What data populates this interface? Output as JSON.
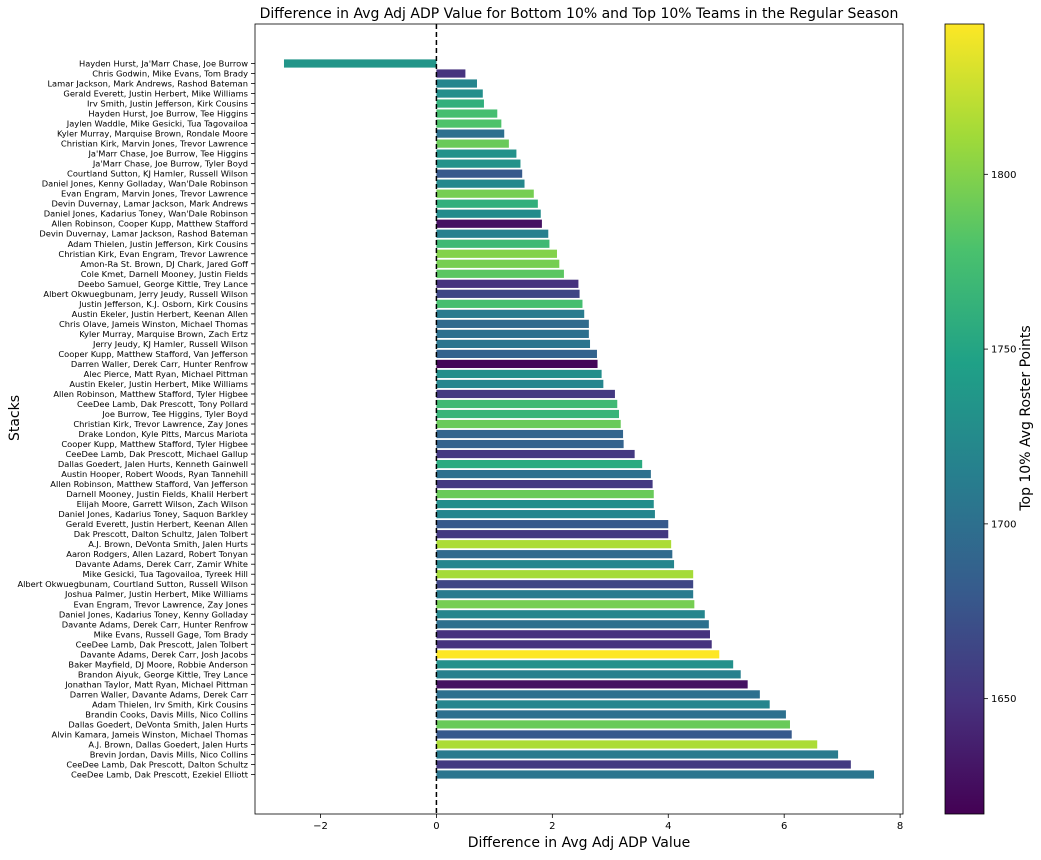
{
  "chart_data": {
    "type": "bar",
    "orientation": "horizontal",
    "title": "Difference in Avg Adj ADP Value for Bottom 10% and Top 10% Teams in the Regular Season",
    "xlabel": "Difference in Avg Adj ADP Value",
    "ylabel": "Stacks",
    "xlim": [
      -3.13,
      8.05
    ],
    "xticks": [
      -2,
      0,
      2,
      4,
      6,
      8
    ],
    "reference_line": {
      "x": 0,
      "style": "dashed",
      "color": "#000000"
    },
    "colorbar": {
      "label": "Top 10% Avg Roster Points",
      "min": 1617,
      "max": 1843,
      "ticks": [
        1650,
        1700,
        1750,
        1800
      ],
      "colormap": "viridis"
    },
    "bars": [
      {
        "label": "Hayden Hurst, Ja'Marr Chase, Joe Burrow",
        "value": -2.63,
        "color_value": 1735
      },
      {
        "label": "Chris Godwin, Mike Evans, Tom Brady",
        "value": 0.5,
        "color_value": 1650
      },
      {
        "label": "Lamar Jackson, Mark Andrews, Rashod Bateman",
        "value": 0.7,
        "color_value": 1720
      },
      {
        "label": "Gerald Everett, Justin Herbert, Mike Williams",
        "value": 0.8,
        "color_value": 1728
      },
      {
        "label": "Irv Smith, Justin Jefferson, Kirk Cousins",
        "value": 0.82,
        "color_value": 1760
      },
      {
        "label": "Hayden Hurst, Joe Burrow, Tee Higgins",
        "value": 1.05,
        "color_value": 1775
      },
      {
        "label": "Jaylen Waddle, Mike Gesicki, Tua Tagovailoa",
        "value": 1.12,
        "color_value": 1780
      },
      {
        "label": "Kyler Murray, Marquise Brown, Rondale Moore",
        "value": 1.17,
        "color_value": 1700
      },
      {
        "label": "Christian Kirk, Marvin Jones, Trevor Lawrence",
        "value": 1.25,
        "color_value": 1790
      },
      {
        "label": "Ja'Marr Chase, Joe Burrow, Tee Higgins",
        "value": 1.38,
        "color_value": 1732
      },
      {
        "label": "Ja'Marr Chase, Joe Burrow, Tyler Boyd",
        "value": 1.45,
        "color_value": 1732
      },
      {
        "label": "Courtland Sutton, KJ Hamler, Russell Wilson",
        "value": 1.48,
        "color_value": 1680
      },
      {
        "label": "Daniel Jones, Kenny Golladay, Wan'Dale Robinson",
        "value": 1.52,
        "color_value": 1722
      },
      {
        "label": "Evan Engram, Marvin Jones, Trevor Lawrence",
        "value": 1.68,
        "color_value": 1795
      },
      {
        "label": "Devin Duvernay, Lamar Jackson, Mark Andrews",
        "value": 1.75,
        "color_value": 1760
      },
      {
        "label": "Daniel Jones, Kadarius Toney, Wan'Dale Robinson",
        "value": 1.8,
        "color_value": 1725
      },
      {
        "label": "Allen Robinson, Cooper Kupp, Matthew Stafford",
        "value": 1.82,
        "color_value": 1628
      },
      {
        "label": "Devin Duvernay, Lamar Jackson, Rashod Bateman",
        "value": 1.93,
        "color_value": 1715
      },
      {
        "label": "Adam Thielen, Justin Jefferson, Kirk Cousins",
        "value": 1.95,
        "color_value": 1770
      },
      {
        "label": "Christian Kirk, Evan Engram, Trevor Lawrence",
        "value": 2.08,
        "color_value": 1800
      },
      {
        "label": "Amon-Ra St. Brown, DJ Chark, Jared Goff",
        "value": 2.12,
        "color_value": 1795
      },
      {
        "label": "Cole Kmet, Darnell Mooney, Justin Fields",
        "value": 2.2,
        "color_value": 1785
      },
      {
        "label": "Deebo Samuel, George Kittle, Trey Lance",
        "value": 2.45,
        "color_value": 1650
      },
      {
        "label": "Albert Okwuegbunam, Jerry Jeudy, Russell Wilson",
        "value": 2.47,
        "color_value": 1665
      },
      {
        "label": "Justin Jefferson, K.J. Osborn, Kirk Cousins",
        "value": 2.52,
        "color_value": 1775
      },
      {
        "label": "Austin Ekeler, Justin Herbert, Keenan Allen",
        "value": 2.55,
        "color_value": 1710
      },
      {
        "label": "Chris Olave, Jameis Winston, Michael Thomas",
        "value": 2.63,
        "color_value": 1695
      },
      {
        "label": "Kyler Murray, Marquise Brown, Zach Ertz",
        "value": 2.63,
        "color_value": 1700
      },
      {
        "label": "Jerry Jeudy, KJ Hamler, Russell Wilson",
        "value": 2.65,
        "color_value": 1705
      },
      {
        "label": "Cooper Kupp, Matthew Stafford, Van Jefferson",
        "value": 2.77,
        "color_value": 1688
      },
      {
        "label": "Darren Waller, Derek Carr, Hunter Renfrow",
        "value": 2.78,
        "color_value": 1620
      },
      {
        "label": "Alec Pierce, Matt Ryan, Michael Pittman",
        "value": 2.85,
        "color_value": 1728
      },
      {
        "label": "Austin Ekeler, Justin Herbert, Mike Williams",
        "value": 2.88,
        "color_value": 1720
      },
      {
        "label": "Allen Robinson, Matthew Stafford, Tyler Higbee",
        "value": 3.08,
        "color_value": 1655
      },
      {
        "label": "CeeDee Lamb, Dak Prescott, Tony Pollard",
        "value": 3.12,
        "color_value": 1770
      },
      {
        "label": "Joe Burrow, Tee Higgins, Tyler Boyd",
        "value": 3.15,
        "color_value": 1765
      },
      {
        "label": "Christian Kirk, Trevor Lawrence, Zay Jones",
        "value": 3.18,
        "color_value": 1790
      },
      {
        "label": "Drake London, Kyle Pitts, Marcus Mariota",
        "value": 3.22,
        "color_value": 1690
      },
      {
        "label": "Cooper Kupp, Matthew Stafford, Tyler Higbee",
        "value": 3.23,
        "color_value": 1688
      },
      {
        "label": "CeeDee Lamb, Dak Prescott, Michael Gallup",
        "value": 3.42,
        "color_value": 1655
      },
      {
        "label": "Dallas Goedert, Jalen Hurts, Kenneth Gainwell",
        "value": 3.55,
        "color_value": 1755
      },
      {
        "label": "Austin Hooper, Robert Woods, Ryan Tannehill",
        "value": 3.7,
        "color_value": 1700
      },
      {
        "label": "Allen Robinson, Matthew Stafford, Van Jefferson",
        "value": 3.73,
        "color_value": 1655
      },
      {
        "label": "Darnell Mooney, Justin Fields, Khalil Herbert",
        "value": 3.75,
        "color_value": 1790
      },
      {
        "label": "Elijah Moore, Garrett Wilson, Zach Wilson",
        "value": 3.75,
        "color_value": 1728
      },
      {
        "label": "Daniel Jones, Kadarius Toney, Saquon Barkley",
        "value": 3.77,
        "color_value": 1720
      },
      {
        "label": "Gerald Everett, Justin Herbert, Keenan Allen",
        "value": 4.0,
        "color_value": 1680
      },
      {
        "label": "Dak Prescott, Dalton Schultz, Jalen Tolbert",
        "value": 4.0,
        "color_value": 1655
      },
      {
        "label": "A.J. Brown, DeVonta Smith, Jalen Hurts",
        "value": 4.05,
        "color_value": 1815
      },
      {
        "label": "Aaron Rodgers, Allen Lazard, Robert Tonyan",
        "value": 4.07,
        "color_value": 1695
      },
      {
        "label": "Davante Adams, Derek Carr, Zamir White",
        "value": 4.1,
        "color_value": 1720
      },
      {
        "label": "Mike Gesicki, Tua Tagovailoa, Tyreek Hill",
        "value": 4.43,
        "color_value": 1812
      },
      {
        "label": "Albert Okwuegbunam, Courtland Sutton, Russell Wilson",
        "value": 4.43,
        "color_value": 1665
      },
      {
        "label": "Joshua Palmer, Justin Herbert, Mike Williams",
        "value": 4.43,
        "color_value": 1710
      },
      {
        "label": "Evan Engram, Trevor Lawrence, Zay Jones",
        "value": 4.45,
        "color_value": 1795
      },
      {
        "label": "Daniel Jones, Kadarius Toney, Kenny Golladay",
        "value": 4.63,
        "color_value": 1720
      },
      {
        "label": "Davante Adams, Derek Carr, Hunter Renfrow",
        "value": 4.7,
        "color_value": 1700
      },
      {
        "label": "Mike Evans, Russell Gage, Tom Brady",
        "value": 4.72,
        "color_value": 1650
      },
      {
        "label": "CeeDee Lamb, Dak Prescott, Jalen Tolbert",
        "value": 4.75,
        "color_value": 1650
      },
      {
        "label": "Davante Adams, Derek Carr, Josh Jacobs",
        "value": 4.88,
        "color_value": 1843
      },
      {
        "label": "Baker Mayfield, DJ Moore, Robbie Anderson",
        "value": 5.12,
        "color_value": 1730
      },
      {
        "label": "Brandon Aiyuk, George Kittle, Trey Lance",
        "value": 5.25,
        "color_value": 1715
      },
      {
        "label": "Jonathan Taylor, Matt Ryan, Michael Pittman",
        "value": 5.37,
        "color_value": 1628
      },
      {
        "label": "Darren Waller, Davante Adams, Derek Carr",
        "value": 5.58,
        "color_value": 1700
      },
      {
        "label": "Adam Thielen, Irv Smith, Kirk Cousins",
        "value": 5.75,
        "color_value": 1720
      },
      {
        "label": "Brandin Cooks, Davis Mills, Nico Collins",
        "value": 6.03,
        "color_value": 1700
      },
      {
        "label": "Dallas Goedert, DeVonta Smith, Jalen Hurts",
        "value": 6.1,
        "color_value": 1790
      },
      {
        "label": "Alvin Kamara, Jameis Winston, Michael Thomas",
        "value": 6.13,
        "color_value": 1680
      },
      {
        "label": "A.J. Brown, Dallas Goedert, Jalen Hurts",
        "value": 6.57,
        "color_value": 1815
      },
      {
        "label": "Brevin Jordan, Davis Mills, Nico Collins",
        "value": 6.93,
        "color_value": 1710
      },
      {
        "label": "CeeDee Lamb, Dak Prescott, Dalton Schultz",
        "value": 7.15,
        "color_value": 1655
      },
      {
        "label": "CeeDee Lamb, Dak Prescott, Ezekiel Elliott",
        "value": 7.55,
        "color_value": 1705
      }
    ]
  }
}
